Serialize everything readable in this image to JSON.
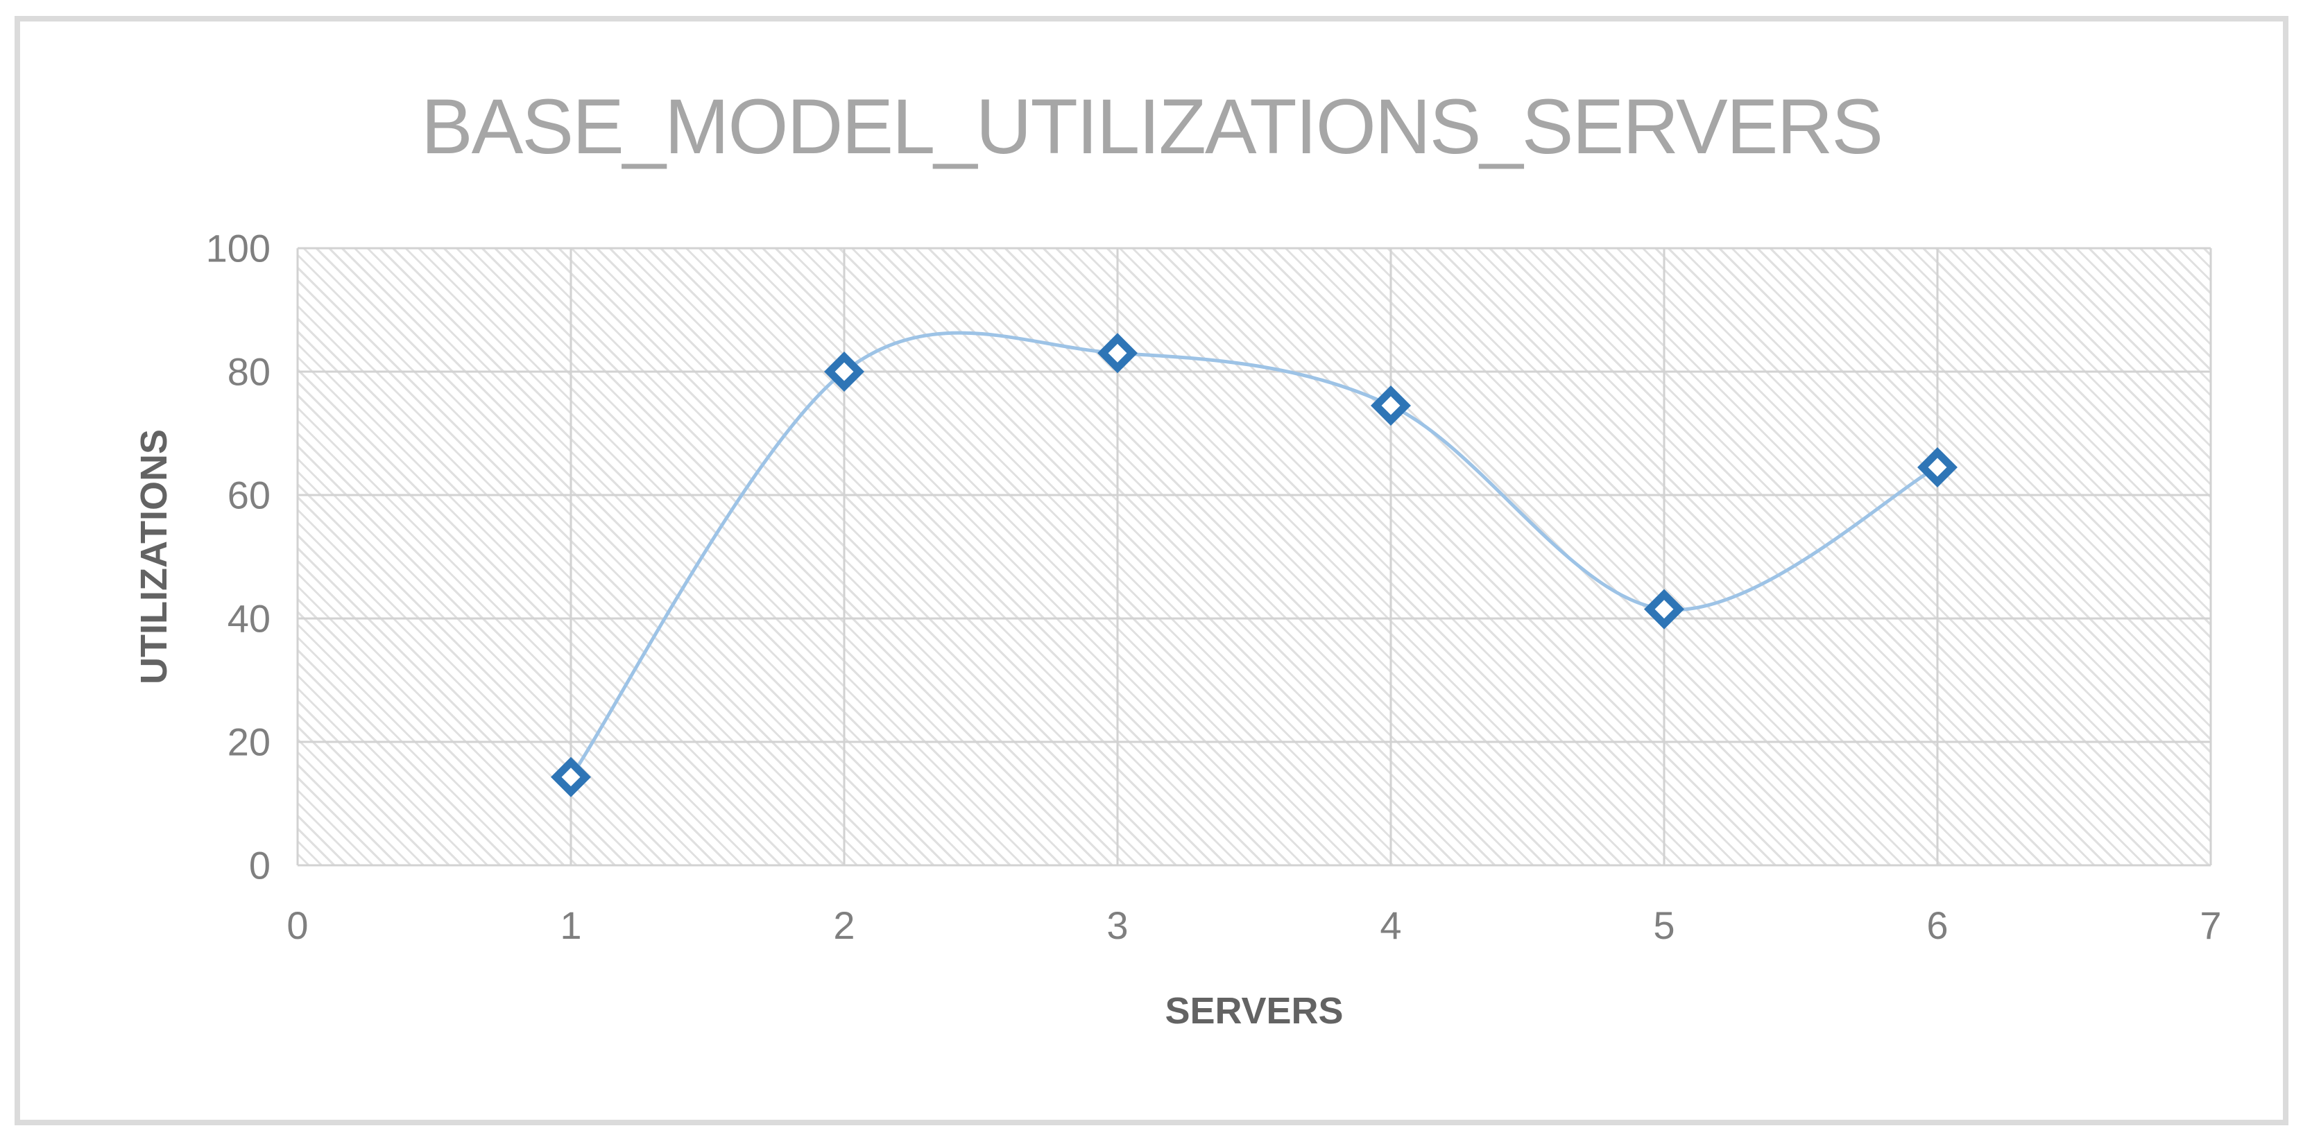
{
  "chart_data": {
    "type": "line",
    "title": "BASE_MODEL_UTILIZATIONS_SERVERS",
    "xlabel": "SERVERS",
    "ylabel": "UTILIZATIONS",
    "series": [
      {
        "name": "BASE_MODEL_UTILIZATIONS_SERVERS",
        "x": [
          1,
          2,
          3,
          4,
          5,
          6
        ],
        "values": [
          14.3,
          80,
          83,
          74.5,
          41.5,
          64.5
        ]
      }
    ],
    "xlim": [
      0,
      7
    ],
    "ylim": [
      0,
      100
    ],
    "x_ticks": [
      0,
      1,
      2,
      3,
      4,
      5,
      6,
      7
    ],
    "y_ticks": [
      0,
      20,
      40,
      60,
      80,
      100
    ],
    "grid": "major-horizontal-and-vertical",
    "legend_position": "none",
    "line_style": "smooth",
    "marker": "diamond",
    "plot_area_fill": "light-downward-diagonal-hatch",
    "colors": {
      "line": "#9DC3E6",
      "marker": "#2E75B6",
      "marker_fill": "#FFFFFF",
      "gridline": "#D2D2D2",
      "hatch": "#E0E0E0",
      "title": "#A6A6A6",
      "tick_labels": "#7F7F7F",
      "axis_titles": "#636363",
      "frame_border": "#DBDBDB"
    }
  }
}
